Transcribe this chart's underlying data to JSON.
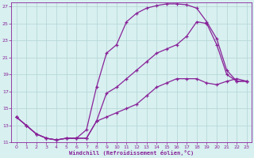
{
  "xlabel": "Windchill (Refroidissement éolien,°C)",
  "bg_color": "#d8f0f0",
  "grid_color": "#b8d8d8",
  "line_color": "#882299",
  "xlim_min": -0.5,
  "xlim_max": 23.5,
  "ylim_min": 11,
  "ylim_max": 27.5,
  "x_ticks": [
    0,
    1,
    2,
    3,
    4,
    5,
    6,
    7,
    8,
    9,
    10,
    11,
    12,
    13,
    14,
    15,
    16,
    17,
    18,
    19,
    20,
    21,
    22,
    23
  ],
  "y_ticks": [
    11,
    13,
    15,
    17,
    19,
    21,
    23,
    25,
    27
  ],
  "line1_x": [
    0,
    1,
    2,
    3,
    4,
    5,
    6,
    7,
    8,
    9,
    10,
    11,
    12,
    13,
    14,
    15,
    16,
    17,
    18,
    19,
    20,
    21,
    22,
    23
  ],
  "line1_y": [
    14.0,
    13.0,
    12.0,
    11.5,
    11.3,
    11.5,
    11.5,
    12.5,
    17.5,
    21.5,
    22.5,
    25.2,
    26.2,
    26.8,
    27.1,
    27.3,
    27.3,
    27.2,
    26.8,
    25.2,
    23.2,
    19.5,
    18.2,
    18.2
  ],
  "line2_x": [
    0,
    1,
    2,
    3,
    4,
    5,
    6,
    7,
    8,
    9,
    10,
    11,
    12,
    13,
    14,
    15,
    16,
    17,
    18,
    19,
    20,
    21,
    22,
    23
  ],
  "line2_y": [
    14.0,
    13.0,
    12.0,
    11.5,
    11.3,
    11.5,
    11.5,
    11.5,
    13.5,
    16.8,
    17.5,
    18.5,
    19.5,
    20.5,
    21.5,
    22.0,
    22.5,
    23.5,
    25.2,
    25.0,
    22.5,
    19.0,
    18.2,
    18.2
  ],
  "line3_x": [
    0,
    1,
    2,
    3,
    4,
    5,
    6,
    7,
    8,
    9,
    10,
    11,
    12,
    13,
    14,
    15,
    16,
    17,
    18,
    19,
    20,
    21,
    22,
    23
  ],
  "line3_y": [
    14.0,
    13.0,
    12.0,
    11.5,
    11.3,
    11.5,
    11.5,
    11.5,
    13.5,
    14.0,
    14.5,
    15.0,
    15.5,
    16.5,
    17.5,
    18.0,
    18.5,
    18.5,
    18.5,
    18.0,
    17.8,
    18.2,
    18.5,
    18.2
  ]
}
